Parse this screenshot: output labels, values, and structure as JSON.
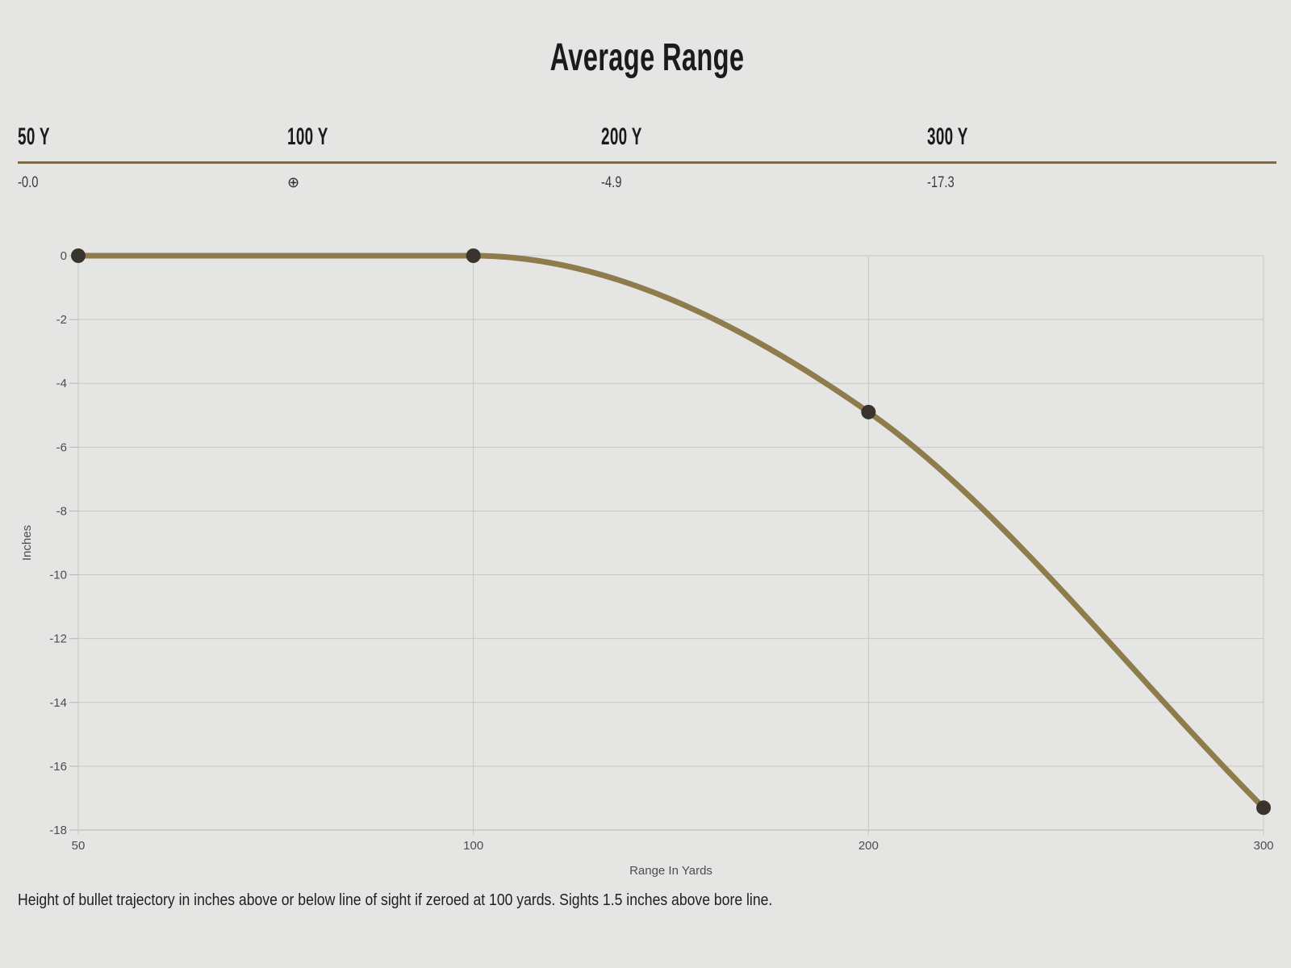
{
  "title": "Average Range",
  "summary": {
    "columns": [
      {
        "label": "50 Y",
        "value": "-0.0"
      },
      {
        "label": "100 Y",
        "value": "⊕"
      },
      {
        "label": "200 Y",
        "value": "-4.9"
      },
      {
        "label": "300 Y",
        "value": "-17.3"
      }
    ]
  },
  "chart_data": {
    "type": "line",
    "x": [
      50,
      100,
      200,
      300
    ],
    "x_tick_labels": [
      "50",
      "100",
      "200",
      "300"
    ],
    "values": [
      0,
      0,
      -4.9,
      -17.3
    ],
    "xlabel": "Range In Yards",
    "ylabel": "Inches",
    "ylim": [
      -18,
      0
    ],
    "y_ticks": [
      0,
      -2,
      -4,
      -6,
      -8,
      -10,
      -12,
      -14,
      -16,
      -18
    ],
    "grid": true,
    "equal_category_spacing": true,
    "curve": "monotone",
    "markers": true,
    "line_color": "#8f7c4c",
    "point_color": "#39342e",
    "grid_color": "#c6c6c4",
    "axis_color": "#b4b4b2",
    "label_color": "#4d4d4d"
  },
  "footnote": "Height of bullet trajectory in inches above or below line of sight if zeroed at 100 yards. Sights 1.5 inches above bore line.",
  "colors": {
    "background": "#e5e5e3",
    "divider": "#7a6b4c",
    "heading_text": "#1b1b1b",
    "value_text": "#3c3c3c"
  }
}
